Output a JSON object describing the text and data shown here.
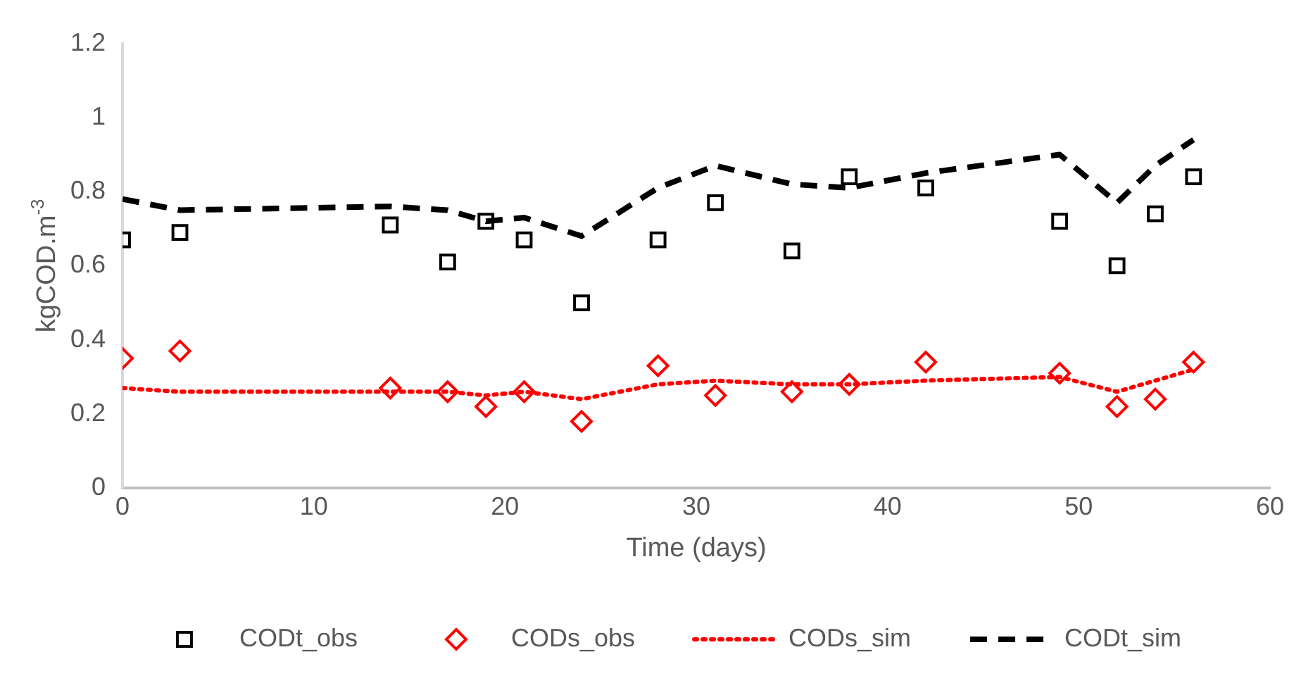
{
  "chart_data": {
    "type": "line",
    "xlabel": "Time (days)",
    "ylabel": "kgCOD.m$^{-3}$",
    "x": [
      0,
      3,
      14,
      17,
      19,
      21,
      24,
      28,
      31,
      35,
      38,
      42,
      49,
      52,
      54,
      56
    ],
    "xlim": [
      0,
      60
    ],
    "xticks": [
      0,
      10,
      20,
      30,
      40,
      50,
      60
    ],
    "ylim": [
      0,
      1.2
    ],
    "yticks": [
      0,
      0.2,
      0.4,
      0.6,
      0.8,
      1,
      1.2
    ],
    "grid": false,
    "legend": "bottom",
    "series": [
      {
        "name": "CODt_obs",
        "type": "scatter",
        "marker": "square",
        "color": "#000000",
        "values": [
          0.67,
          0.69,
          0.71,
          0.61,
          0.72,
          0.67,
          0.5,
          0.67,
          0.77,
          0.64,
          0.84,
          0.81,
          0.72,
          0.6,
          0.74,
          0.84
        ]
      },
      {
        "name": "CODs_obs",
        "type": "scatter",
        "marker": "diamond",
        "color": "#ff0000",
        "values": [
          0.35,
          0.37,
          0.27,
          0.26,
          0.22,
          0.26,
          0.18,
          0.33,
          0.25,
          0.26,
          0.28,
          0.34,
          0.31,
          0.22,
          0.24,
          0.34
        ]
      },
      {
        "name": "CODs_sim",
        "type": "line",
        "marker": "none",
        "line_style": "dotted",
        "color": "#ff0000",
        "values": [
          0.27,
          0.26,
          0.26,
          0.26,
          0.25,
          0.26,
          0.24,
          0.28,
          0.29,
          0.28,
          0.28,
          0.29,
          0.3,
          0.26,
          0.29,
          0.32
        ]
      },
      {
        "name": "CODt_sim",
        "type": "line",
        "marker": "none",
        "line_style": "dashed",
        "color": "#000000",
        "values": [
          0.78,
          0.75,
          0.76,
          0.75,
          0.72,
          0.73,
          0.68,
          0.81,
          0.87,
          0.82,
          0.81,
          0.85,
          0.9,
          0.77,
          0.87,
          0.94
        ]
      }
    ]
  }
}
